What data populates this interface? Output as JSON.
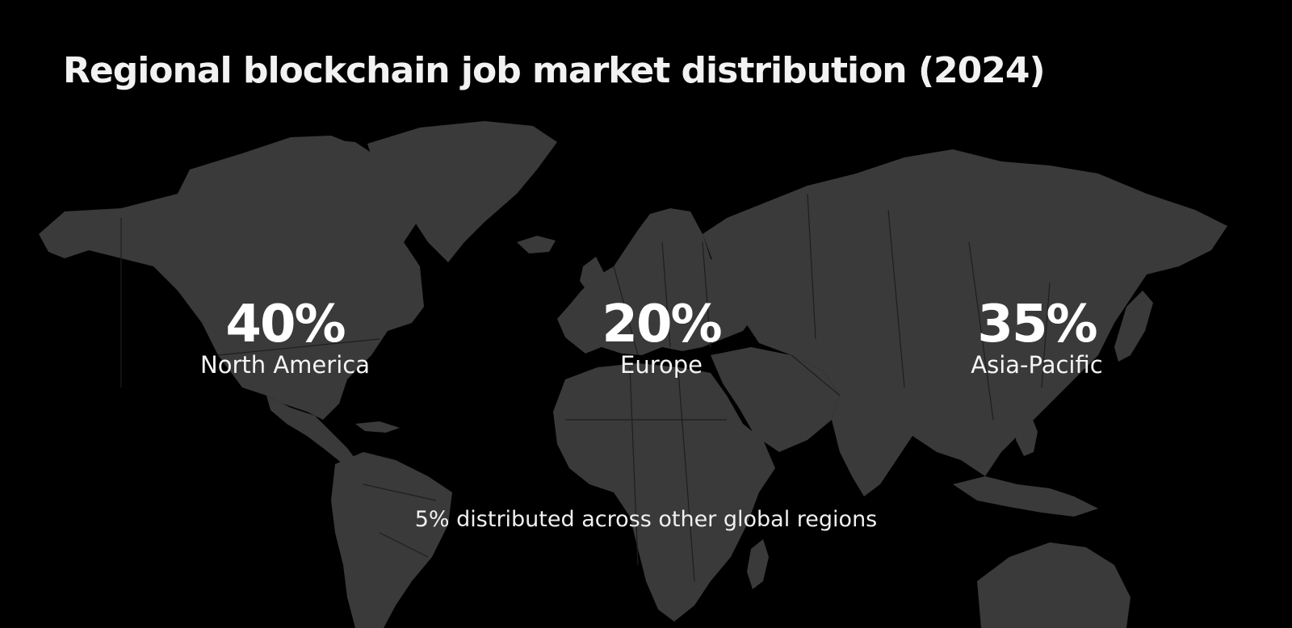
{
  "title": "Regional blockchain job market distribution (2024)",
  "regions": [
    {
      "value": "40%",
      "label": "North America",
      "share": 0.4
    },
    {
      "value": "20%",
      "label": "Europe",
      "share": 0.2
    },
    {
      "value": "35%",
      "label": "Asia-Pacific",
      "share": 0.35
    }
  ],
  "footnote": "5% distributed across other global regions",
  "colors": {
    "background": "#000000",
    "land": "#3a3a3a",
    "borders": "#1e1e1e",
    "text": "#ffffff"
  }
}
